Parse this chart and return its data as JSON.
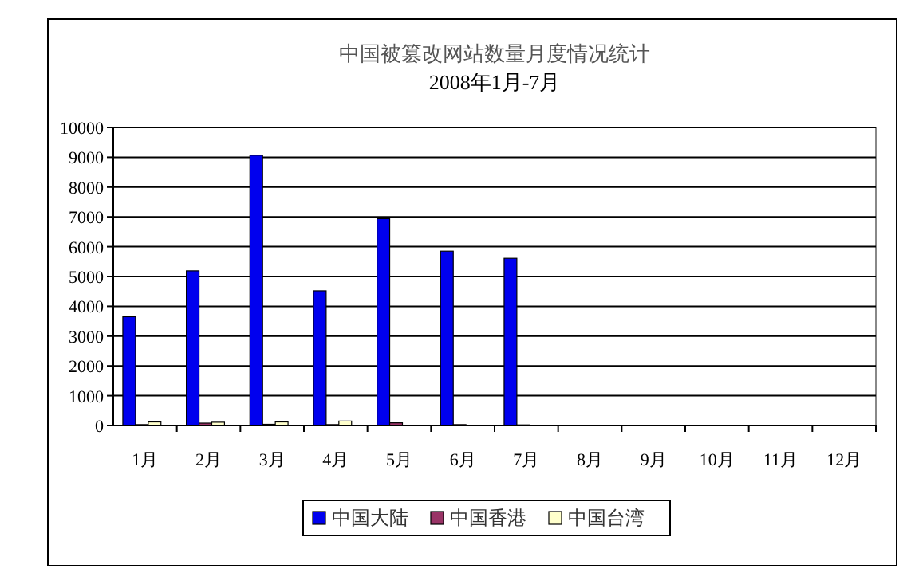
{
  "chart_data": {
    "type": "bar",
    "title": "中国被篡改网站数量月度情况统计",
    "subtitle": "2008年1月-7月",
    "categories": [
      "1月",
      "2月",
      "3月",
      "4月",
      "5月",
      "6月",
      "7月",
      "8月",
      "9月",
      "10月",
      "11月",
      "12月"
    ],
    "series": [
      {
        "name": "中国大陆",
        "color": "#0000ee",
        "values": [
          3650,
          5190,
          9070,
          4520,
          6940,
          5850,
          5610,
          null,
          null,
          null,
          null,
          null
        ]
      },
      {
        "name": "中国香港",
        "color": "#993366",
        "values": [
          30,
          80,
          40,
          30,
          90,
          30,
          20,
          null,
          null,
          null,
          null,
          null
        ]
      },
      {
        "name": "中国台湾",
        "color": "#ffffcc",
        "values": [
          120,
          110,
          120,
          150,
          null,
          null,
          null,
          null,
          null,
          null,
          null,
          null
        ]
      }
    ],
    "ylim": [
      0,
      10000
    ],
    "yticks": [
      0,
      1000,
      2000,
      3000,
      4000,
      5000,
      6000,
      7000,
      8000,
      9000,
      10000
    ],
    "grid": "y",
    "legend": "bottom"
  }
}
